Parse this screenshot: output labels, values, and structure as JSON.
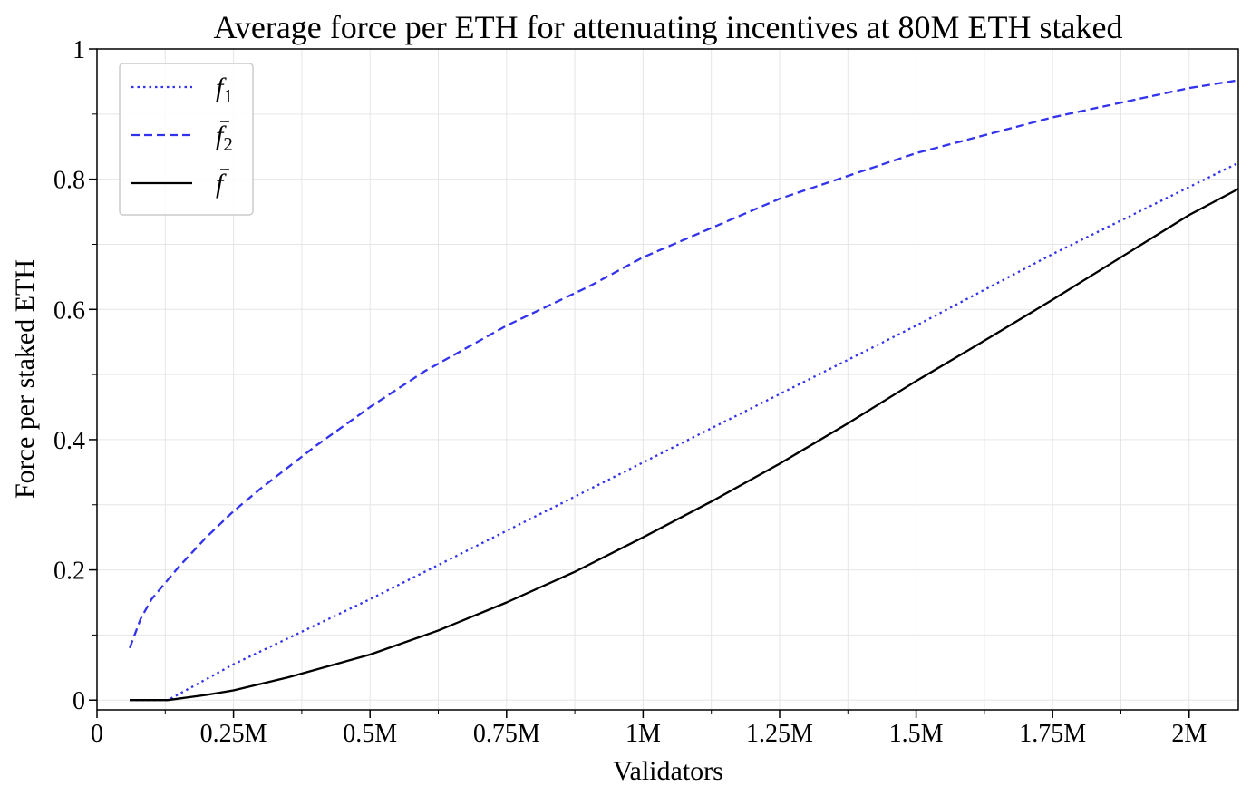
{
  "chart_data": {
    "type": "line",
    "title": "Average force per ETH for attenuating incentives at 80M ETH staked",
    "xlabel": "Validators",
    "ylabel": "Force per staked ETH",
    "xlim": [
      0,
      2090000
    ],
    "ylim": [
      -0.015,
      1.0
    ],
    "grid": true,
    "legend_position": "top-left",
    "x_ticks": [
      {
        "value": 0,
        "label": "0"
      },
      {
        "value": 250000,
        "label": "0.25M"
      },
      {
        "value": 500000,
        "label": "0.5M"
      },
      {
        "value": 750000,
        "label": "0.75M"
      },
      {
        "value": 1000000,
        "label": "1M"
      },
      {
        "value": 1250000,
        "label": "1.25M"
      },
      {
        "value": 1500000,
        "label": "1.5M"
      },
      {
        "value": 1750000,
        "label": "1.75M"
      },
      {
        "value": 2000000,
        "label": "2M"
      }
    ],
    "y_ticks": [
      {
        "value": 0,
        "label": "0"
      },
      {
        "value": 0.2,
        "label": "0.2"
      },
      {
        "value": 0.4,
        "label": "0.4"
      },
      {
        "value": 0.6,
        "label": "0.6"
      },
      {
        "value": 0.8,
        "label": "0.8"
      },
      {
        "value": 1.0,
        "label": "1"
      }
    ],
    "series": [
      {
        "name": "f1",
        "legend_base": "f",
        "legend_sub": "1",
        "legend_bar": false,
        "style": "dotted",
        "color": "#3333ee",
        "x": [
          60000,
          130000,
          250000,
          500000,
          750000,
          1000000,
          1250000,
          1500000,
          1750000,
          2090000
        ],
        "y": [
          0,
          0,
          0.055,
          0.155,
          0.26,
          0.365,
          0.47,
          0.575,
          0.685,
          0.825
        ]
      },
      {
        "name": "f2 bar",
        "legend_base": "f",
        "legend_sub": "2",
        "legend_bar": true,
        "style": "dashed",
        "color": "#3333ee",
        "x": [
          60000,
          80000,
          100000,
          150000,
          200000,
          250000,
          300000,
          400000,
          500000,
          600000,
          750000,
          900000,
          1000000,
          1250000,
          1500000,
          1750000,
          2000000,
          2090000
        ],
        "y": [
          0.08,
          0.125,
          0.155,
          0.205,
          0.25,
          0.29,
          0.325,
          0.39,
          0.45,
          0.505,
          0.575,
          0.635,
          0.68,
          0.77,
          0.84,
          0.895,
          0.94,
          0.952
        ]
      },
      {
        "name": "f bar",
        "legend_base": "f",
        "legend_sub": "",
        "legend_bar": true,
        "style": "solid",
        "color": "#000000",
        "x": [
          60000,
          130000,
          200000,
          250000,
          350000,
          500000,
          625000,
          750000,
          875000,
          1000000,
          1125000,
          1250000,
          1375000,
          1500000,
          1625000,
          1750000,
          1875000,
          2000000,
          2090000
        ],
        "y": [
          0,
          0,
          0.008,
          0.015,
          0.035,
          0.07,
          0.107,
          0.15,
          0.197,
          0.25,
          0.305,
          0.363,
          0.425,
          0.49,
          0.552,
          0.615,
          0.68,
          0.745,
          0.785
        ]
      }
    ]
  }
}
